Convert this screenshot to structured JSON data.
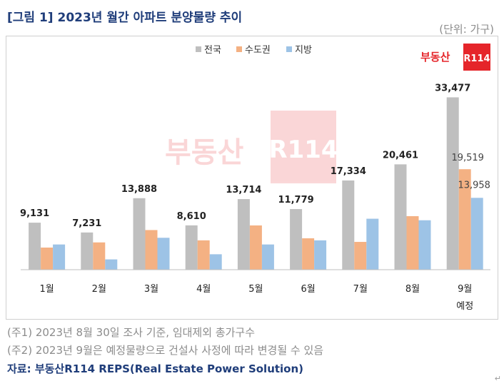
{
  "title": "[그림 1] 2023년 월간 아파트 분양물량 추이",
  "unit": "(단위: 가구)",
  "logo_text": "부동산",
  "logo_badge": "R114",
  "watermark_text": "부동산",
  "watermark_badge": "R114",
  "notes": [
    "(주1) 2023년 8월 30일 조사 기준, 임대제외 총가구수",
    "(주2) 2023년 9월은 예정물량으로 건설사 사정에 따라 변경될 수 있음"
  ],
  "source": "자료: 부동산R114 REPS(Real Estate Power Solution)",
  "colors": {
    "total": "#bfbfbf",
    "capital": "#f4b183",
    "local": "#9dc3e6",
    "title": "#1f3d7a",
    "logo_red": "#e5252a"
  },
  "chart_data": {
    "type": "bar",
    "categories": [
      "1월",
      "2월",
      "3월",
      "4월",
      "5월",
      "6월",
      "7월",
      "8월",
      "9월"
    ],
    "category_sublabels": [
      "",
      "",
      "",
      "",
      "",
      "",
      "",
      "",
      "예정"
    ],
    "series": [
      {
        "name": "전국",
        "values": [
          9131,
          7231,
          13888,
          8610,
          13714,
          11779,
          17334,
          20461,
          33477
        ]
      },
      {
        "name": "수도권",
        "values": [
          4300,
          5300,
          7700,
          5700,
          8600,
          6100,
          5400,
          10400,
          19519
        ]
      },
      {
        "name": "지방",
        "values": [
          4900,
          2000,
          6200,
          3000,
          4900,
          5700,
          9900,
          9600,
          13958
        ]
      }
    ],
    "data_labels": {
      "전국": [
        "9,131",
        "7,231",
        "13,888",
        "8,610",
        "13,714",
        "11,779",
        "17,334",
        "20,461",
        "33,477"
      ],
      "수도권": [
        "",
        "",
        "",
        "",
        "",
        "",
        "",
        "",
        "19,519"
      ],
      "지방": [
        "",
        "",
        "",
        "",
        "",
        "",
        "",
        "",
        "13,958"
      ]
    },
    "ylim": [
      0,
      37000
    ],
    "legend_position": "top-center",
    "grid": false
  }
}
